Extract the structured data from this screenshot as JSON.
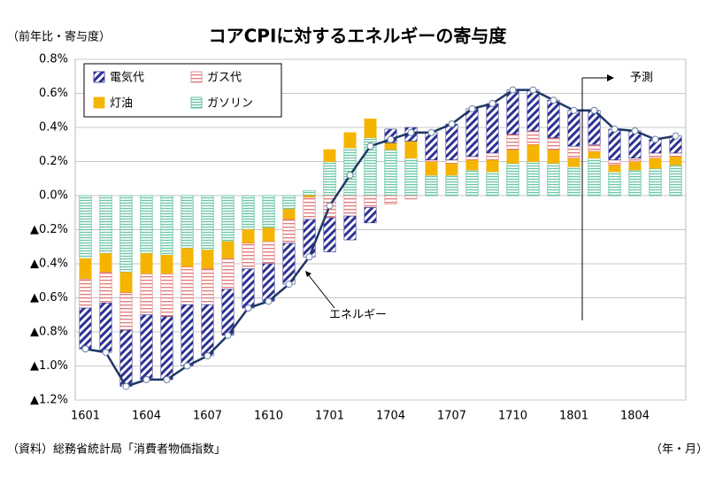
{
  "chart_data": {
    "type": "bar",
    "title": "コアCPIに対するエネルギーの寄与度",
    "subtitle": "（前年比・寄与度）",
    "source": "（資料）総務省統計局「消費者物価指数」",
    "xlabel": "（年・月）",
    "stacked": true,
    "grid": true,
    "categories": [
      "1601",
      null,
      null,
      "1604",
      null,
      null,
      "1607",
      null,
      null,
      "1610",
      null,
      null,
      "1701",
      null,
      null,
      "1704",
      null,
      null,
      "1707",
      null,
      null,
      "1710",
      null,
      null,
      "1801",
      null,
      null,
      "1804",
      null,
      null
    ],
    "ylim": [
      -1.2,
      0.8
    ],
    "yticks": [
      {
        "value": 0.8,
        "label": "0.8%"
      },
      {
        "value": 0.6,
        "label": "0.6%"
      },
      {
        "value": 0.4,
        "label": "0.4%"
      },
      {
        "value": 0.2,
        "label": "0.2%"
      },
      {
        "value": 0,
        "label": "0.0%"
      },
      {
        "value": -0.2,
        "label": "▲0.2%"
      },
      {
        "value": -0.4,
        "label": "▲0.4%"
      },
      {
        "value": -0.6,
        "label": "▲0.6%"
      },
      {
        "value": -0.8,
        "label": "▲0.8%"
      },
      {
        "value": -1.0,
        "label": "▲1.0%"
      },
      {
        "value": -1.2,
        "label": "▲1.2%"
      }
    ],
    "series": [
      {
        "name": "電気代",
        "color": "#2e3192",
        "values": [
          -0.24,
          -0.29,
          -0.33,
          -0.38,
          -0.37,
          -0.36,
          -0.3,
          -0.27,
          -0.23,
          -0.22,
          -0.24,
          -0.22,
          -0.2,
          -0.14,
          -0.09,
          0.08,
          0.08,
          0.16,
          0.21,
          0.28,
          0.29,
          0.26,
          0.24,
          0.22,
          0.21,
          0.2,
          0.18,
          0.16,
          0.08,
          0.1
        ]
      },
      {
        "name": "ガス代",
        "color": "#e07a7a",
        "values": [
          -0.17,
          -0.18,
          -0.22,
          -0.24,
          -0.25,
          -0.22,
          -0.21,
          -0.18,
          -0.15,
          -0.13,
          -0.14,
          -0.13,
          -0.13,
          -0.12,
          -0.07,
          -0.05,
          -0.02,
          0.01,
          0.02,
          0.02,
          0.04,
          0.09,
          0.08,
          0.07,
          0.07,
          0.04,
          0.03,
          0.02,
          0.03,
          0.02
        ]
      },
      {
        "name": "灯油",
        "color": "#f5b400",
        "values": [
          -0.12,
          -0.11,
          -0.12,
          -0.12,
          -0.11,
          -0.11,
          -0.11,
          -0.1,
          -0.08,
          -0.08,
          -0.06,
          -0.01,
          0.07,
          0.09,
          0.11,
          0.04,
          0.1,
          0.08,
          0.07,
          0.06,
          0.07,
          0.08,
          0.1,
          0.08,
          0.05,
          0.04,
          0.04,
          0.05,
          0.06,
          0.05
        ]
      },
      {
        "name": "ガソリン",
        "color": "#3fb68b",
        "values": [
          -0.37,
          -0.34,
          -0.45,
          -0.34,
          -0.35,
          -0.31,
          -0.32,
          -0.27,
          -0.2,
          -0.19,
          -0.08,
          0.03,
          0.2,
          0.28,
          0.34,
          0.27,
          0.22,
          0.12,
          0.12,
          0.15,
          0.14,
          0.19,
          0.2,
          0.19,
          0.17,
          0.22,
          0.14,
          0.15,
          0.16,
          0.18
        ]
      },
      {
        "name": "エネルギー",
        "type": "line",
        "color": "#1f3864",
        "values": [
          -0.9,
          -0.92,
          -1.12,
          -1.08,
          -1.08,
          -1.0,
          -0.94,
          -0.82,
          -0.66,
          -0.62,
          -0.52,
          -0.36,
          -0.06,
          0.12,
          0.29,
          0.33,
          0.37,
          0.37,
          0.42,
          0.51,
          0.54,
          0.62,
          0.62,
          0.56,
          0.5,
          0.5,
          0.39,
          0.38,
          0.33,
          0.35
        ]
      }
    ],
    "annotations": [
      {
        "text": "エネルギー"
      },
      {
        "text": "予測"
      }
    ]
  }
}
